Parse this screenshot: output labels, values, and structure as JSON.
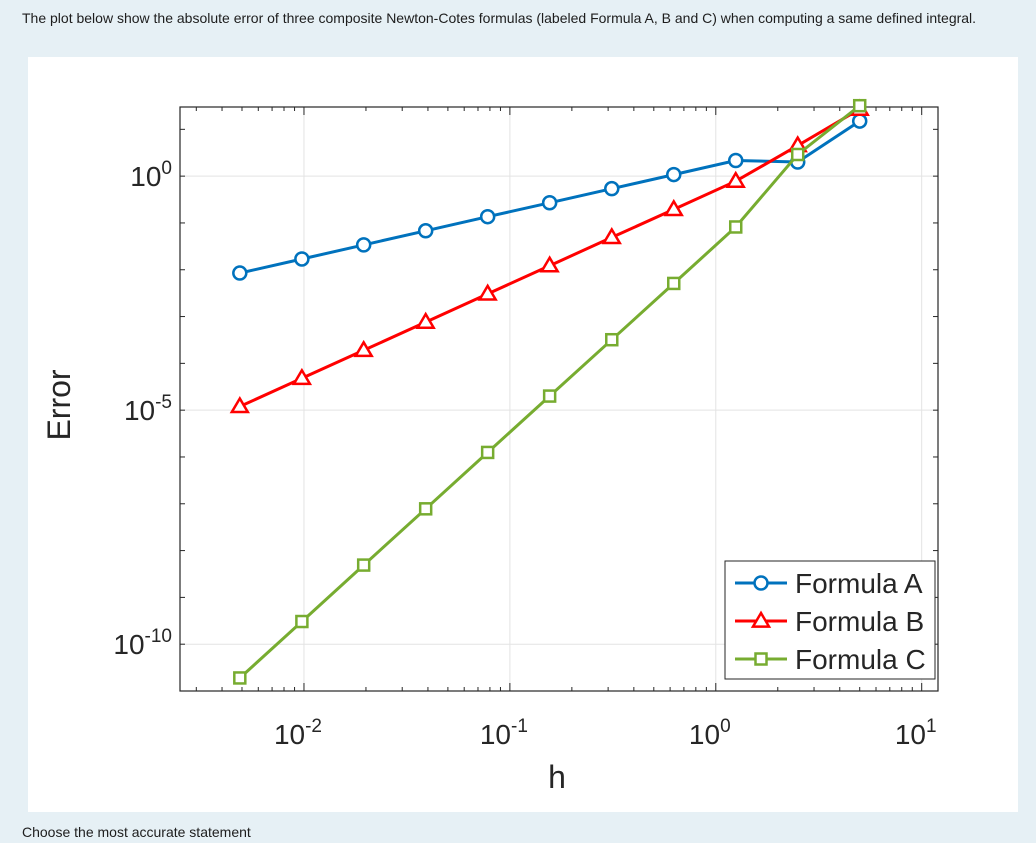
{
  "question": {
    "text": "The plot below show the absolute error of three composite Newton-Cotes formulas (labeled Formula A, B and C) when computing a same defined integral."
  },
  "prompt": {
    "text": "Choose the most accurate statement"
  },
  "chart_data": {
    "type": "line",
    "title": "",
    "xlabel": "h",
    "ylabel": "Error",
    "xscale": "log",
    "yscale": "log",
    "xlim": [
      0.0025,
      12
    ],
    "ylim": [
      1e-11,
      30.0
    ],
    "xticks": [
      {
        "base": "10",
        "exp": "-2",
        "value": 0.01
      },
      {
        "base": "10",
        "exp": "-1",
        "value": 0.1
      },
      {
        "base": "10",
        "exp": "0",
        "value": 1
      },
      {
        "base": "10",
        "exp": "1",
        "value": 10
      }
    ],
    "yticks": [
      {
        "base": "10",
        "exp": "0",
        "value": 1
      },
      {
        "base": "10",
        "exp": "-5",
        "value": 1e-05
      },
      {
        "base": "10",
        "exp": "-10",
        "value": 1e-10
      }
    ],
    "grid": true,
    "legend_position": "bottom-right",
    "x": [
      0.00488,
      0.00977,
      0.0195,
      0.039,
      0.078,
      0.156,
      0.3125,
      0.625,
      1.25,
      2.5,
      5.0
    ],
    "series": [
      {
        "name": "Formula A",
        "color": "#0072BD",
        "marker": "circle",
        "values": [
          0.0085,
          0.017,
          0.034,
          0.068,
          0.136,
          0.27,
          0.54,
          1.08,
          2.16,
          2.0,
          15
        ]
      },
      {
        "name": "Formula B",
        "color": "#FF0000",
        "marker": "triangle",
        "values": [
          1.2e-05,
          4.8e-05,
          0.00019,
          0.00076,
          0.00305,
          0.0122,
          0.049,
          0.195,
          0.78,
          4.5,
          27
        ]
      },
      {
        "name": "Formula C",
        "color": "#77AC30",
        "marker": "square",
        "values": [
          1.9e-11,
          3.05e-10,
          4.9e-09,
          7.8e-08,
          1.25e-06,
          2e-05,
          0.00032,
          0.0051,
          0.082,
          2.9,
          32
        ]
      }
    ]
  }
}
